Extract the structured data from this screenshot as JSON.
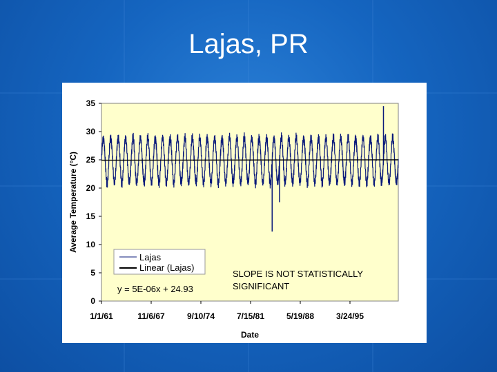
{
  "slide": {
    "title": "Lajas, PR"
  },
  "chart_data": {
    "type": "line",
    "xlabel": "Date",
    "ylabel": "Average Temperature (°C)",
    "ylim": [
      0,
      35
    ],
    "y_ticks": [
      "0",
      "5",
      "10",
      "15",
      "20",
      "25",
      "30",
      "35"
    ],
    "x_ticks": [
      "1/1/61",
      "11/6/67",
      "9/10/74",
      "7/15/81",
      "5/19/88",
      "3/24/95"
    ],
    "grid": false,
    "legend_position": "bottom-left",
    "legend": [
      "Lajas",
      "Linear (Lajas)"
    ],
    "equation": "y = 5E-06x + 24.93",
    "annotation_lines": [
      "SLOPE IS NOT STATISTICALLY",
      "SIGNIFICANT"
    ],
    "series": [
      {
        "name": "Lajas",
        "color": "#0a1a7a",
        "cycles": 40,
        "x_start": "1/1/61",
        "x_end": "2001",
        "seasonal_mean": 24.9,
        "seasonal_min": 20.5,
        "seasonal_max": 28.5,
        "outliers": [
          {
            "x": "1984",
            "y": 12.3
          },
          {
            "x": "1985",
            "y": 17.5
          },
          {
            "x": "1999",
            "y": 34.5
          }
        ]
      },
      {
        "name": "Linear (Lajas)",
        "color": "#000000",
        "y_start": 24.93,
        "y_end": 25.0
      }
    ],
    "colors": {
      "plot_background": "#ffffcc",
      "line": "#0a1a7a",
      "trend": "#000000"
    }
  }
}
